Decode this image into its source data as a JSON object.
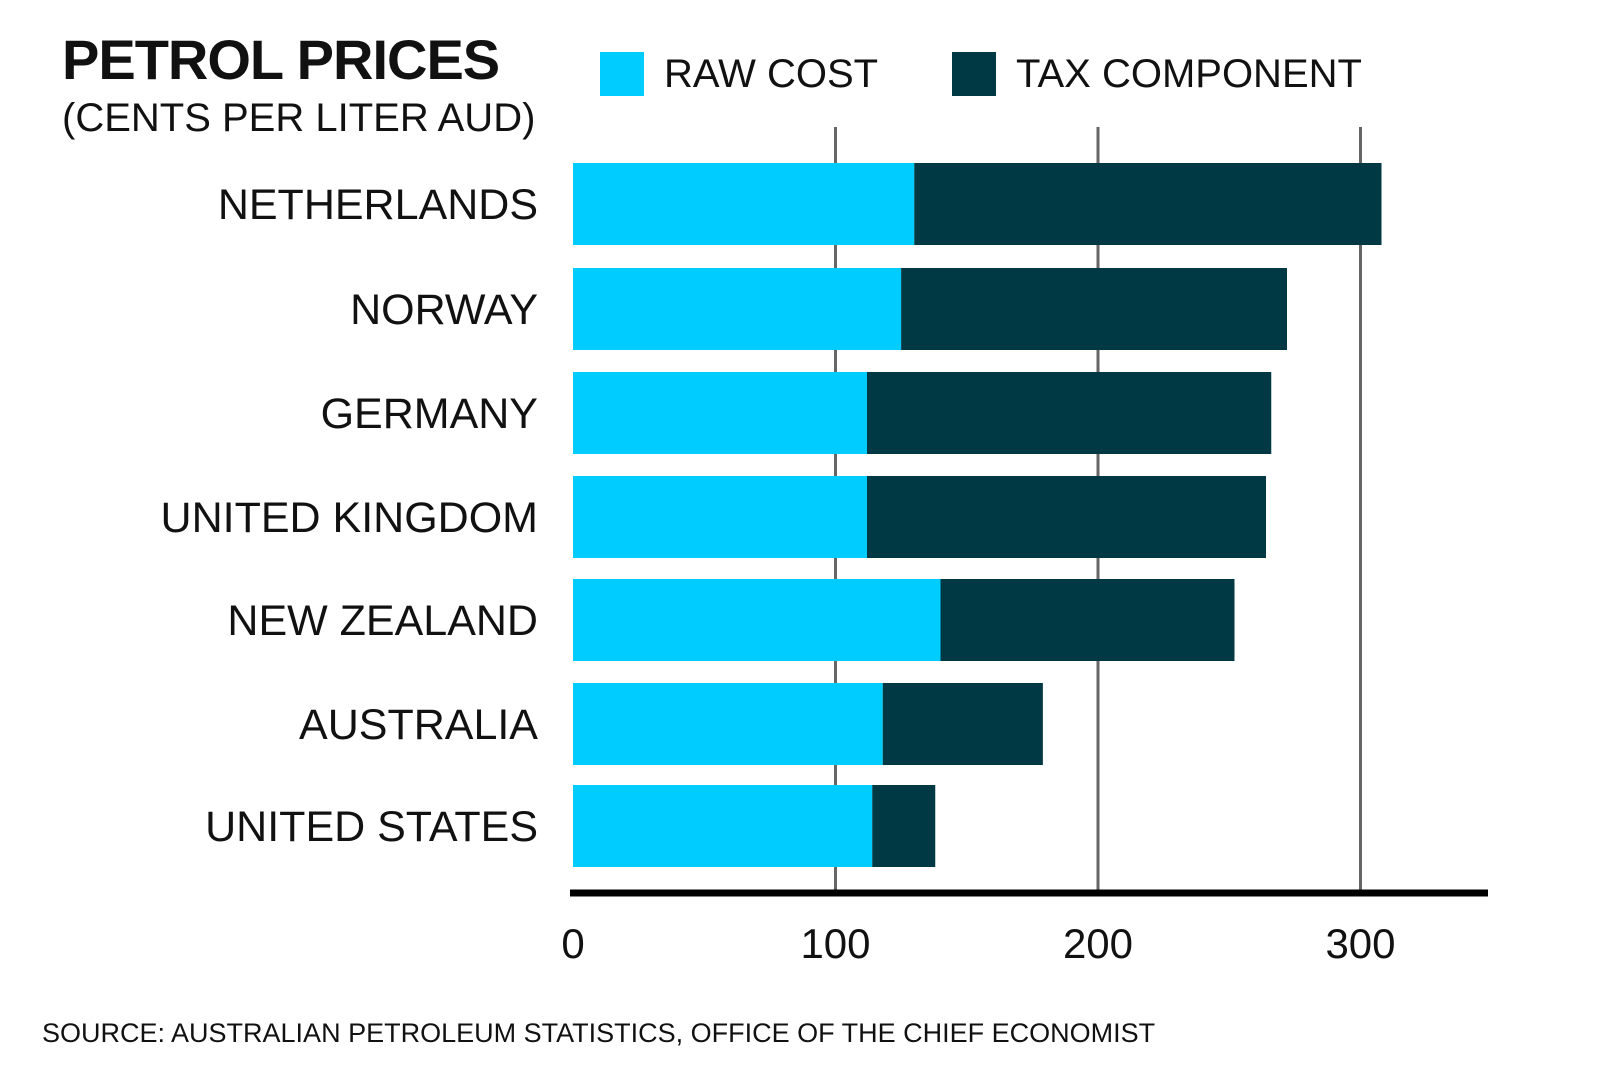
{
  "colors": {
    "raw_cost": "#00CCFF",
    "tax_component": "#003844",
    "gridline": "#666666",
    "axis": "#000000"
  },
  "chart_data": {
    "type": "bar",
    "orientation": "horizontal",
    "stacked": true,
    "title": "PETROL PRICES",
    "subtitle": "(CENTS PER LITER AUD)",
    "categories": [
      "NETHERLANDS",
      "NORWAY",
      "GERMANY",
      "UNITED KINGDOM",
      "NEW ZEALAND",
      "AUSTRALIA",
      "UNITED STATES"
    ],
    "series": [
      {
        "name": "RAW COST",
        "values": [
          130,
          125,
          112,
          112,
          140,
          118,
          114
        ]
      },
      {
        "name": "TAX COMPONENT",
        "values": [
          178,
          147,
          154,
          152,
          112,
          61,
          24
        ]
      }
    ],
    "xlim": [
      0,
      350
    ],
    "xticks": [
      "0",
      "100",
      "200",
      "300"
    ],
    "grid": true,
    "legend_position": "top",
    "source": "SOURCE: AUSTRALIAN PETROLEUM STATISTICS, OFFICE OF THE CHIEF ECONOMIST"
  }
}
